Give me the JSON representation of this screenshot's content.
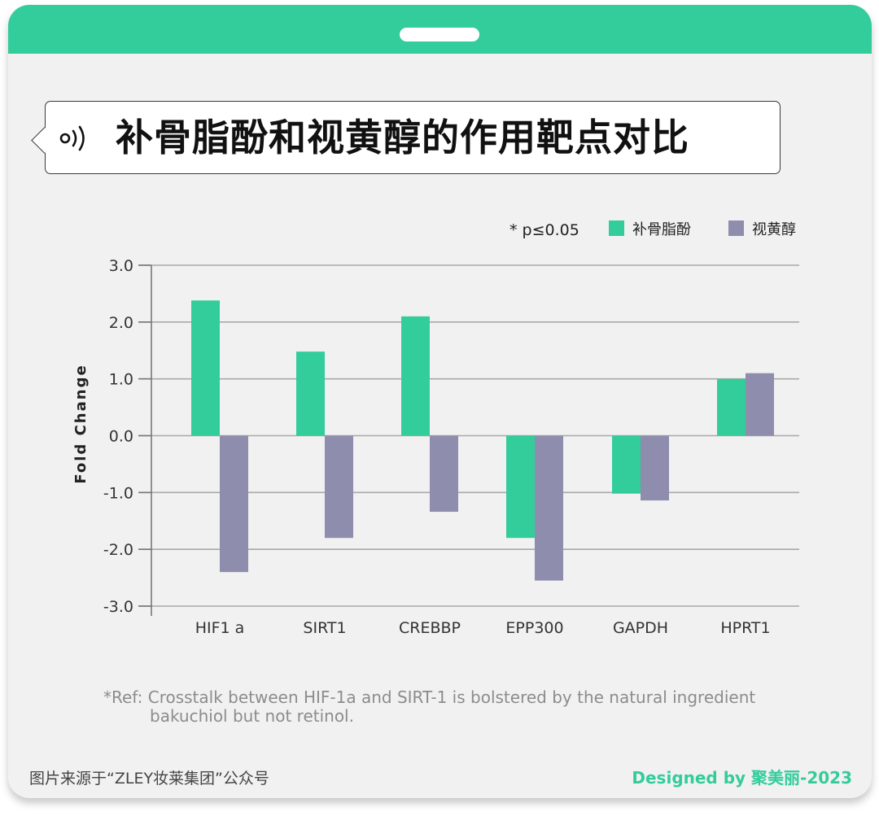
{
  "title": "补骨脂酚和视黄醇的作用靶点对比",
  "chart_data": {
    "type": "bar",
    "categories": [
      "HIF1 a",
      "SIRT1",
      "CREBBP",
      "EPP300",
      "GAPDH",
      "HPRT1"
    ],
    "series": [
      {
        "name": "补骨脂酚",
        "color": "#33cc9b",
        "values": [
          2.38,
          1.48,
          2.1,
          -1.8,
          -1.02,
          1.0
        ]
      },
      {
        "name": "视黄醇",
        "color": "#8e8dad",
        "values": [
          -2.4,
          -1.8,
          -1.34,
          -2.55,
          -1.14,
          1.1
        ]
      }
    ],
    "ylabel": "Fold Change",
    "ylim": [
      -3.0,
      3.0
    ],
    "yticks": [
      "3.0",
      "2.0",
      "1.0",
      "0.0",
      "-1.0",
      "-2.0",
      "-3.0"
    ],
    "grid": true,
    "legend_position": "top-right",
    "annotation": "* p≤0.05"
  },
  "ref_note": {
    "line1": "*Ref: Crosstalk between HIF-1a and SIRT-1 is bolstered by the natural ingredient",
    "line2": "bakuchiol but not retinol."
  },
  "footer": {
    "source": "图片来源于“ZLEY妆莱集团”公众号",
    "designer": "Designed by 聚美丽-2023"
  },
  "icons": {
    "title": "speaker-wave-icon"
  }
}
